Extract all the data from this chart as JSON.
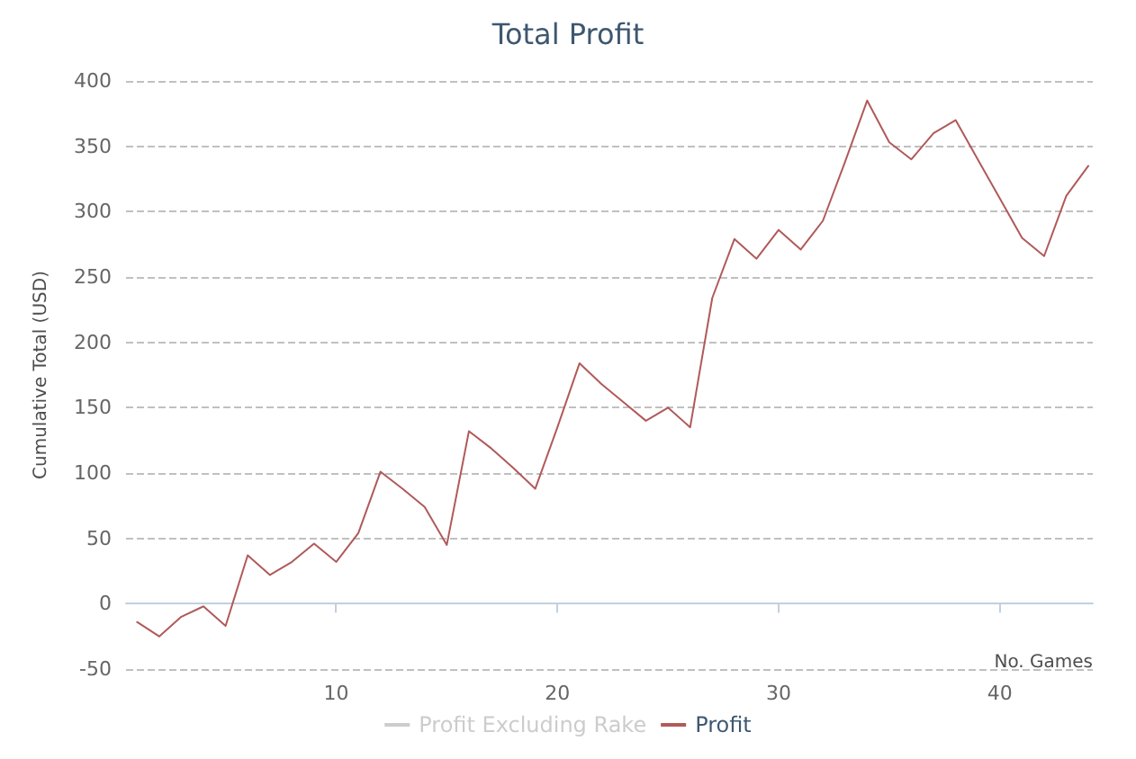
{
  "chart_data": {
    "type": "line",
    "title": "Total Profit",
    "xlabel": "No. Games",
    "ylabel": "Cumulative Total (USD)",
    "x": [
      1,
      2,
      3,
      4,
      5,
      6,
      7,
      8,
      9,
      10,
      11,
      12,
      13,
      14,
      15,
      16,
      17,
      18,
      19,
      20,
      21,
      22,
      23,
      24,
      25,
      26,
      27,
      28,
      29,
      30,
      31,
      32,
      33,
      34,
      35,
      36,
      37,
      38,
      39,
      40,
      41,
      42,
      43,
      44
    ],
    "series": [
      {
        "name": "Profit Excluding Rake",
        "color": "#cccccc",
        "values": [
          null,
          null,
          null,
          null,
          null,
          null,
          null,
          null,
          null,
          null,
          null,
          null,
          null,
          null,
          null,
          null,
          null,
          null,
          null,
          null,
          null,
          null,
          null,
          null,
          null,
          null,
          null,
          null,
          null,
          null,
          null,
          null,
          null,
          null,
          null,
          null,
          null,
          null,
          null,
          null,
          null,
          null,
          null,
          null
        ]
      },
      {
        "name": "Profit",
        "color": "#b05a5a",
        "values": [
          -14,
          -25,
          -10,
          -2,
          -17,
          37,
          22,
          32,
          46,
          32,
          54,
          101,
          88,
          74,
          45,
          132,
          119,
          104,
          88,
          135,
          184,
          168,
          154,
          140,
          150,
          135,
          234,
          279,
          264,
          286,
          271,
          293,
          338,
          385,
          353,
          340,
          360,
          370,
          340,
          310,
          280,
          266,
          312,
          335
        ]
      }
    ],
    "xlim": [
      0.5,
      44.2
    ],
    "xticks": [
      10,
      20,
      30,
      40
    ],
    "ylim": [
      -50,
      400
    ],
    "yticks": [
      -50,
      0,
      50,
      100,
      150,
      200,
      250,
      300,
      350,
      400
    ],
    "grid": "y",
    "legend": "bottom",
    "marker": "none",
    "line_style": "solid"
  }
}
